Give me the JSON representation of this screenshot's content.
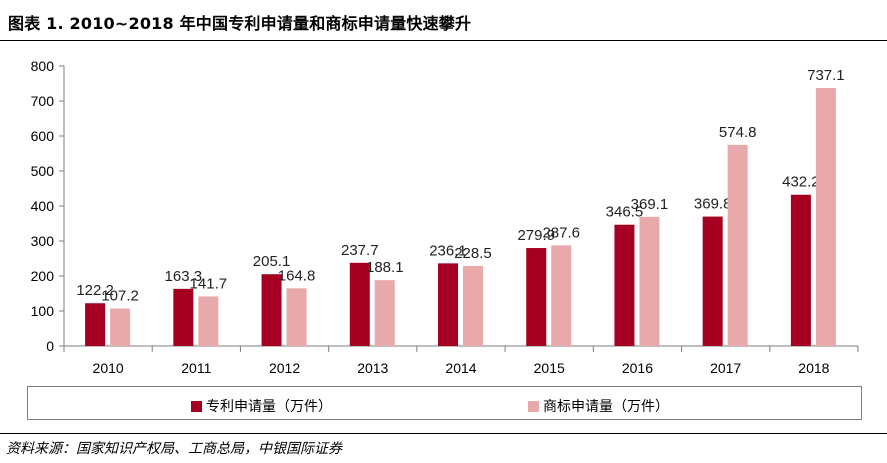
{
  "title": "图表 1. 2010~2018 年中国专利申请量和商标申请量快速攀升",
  "source": "资料来源：国家知识产权局、工商总局，中银国际证券",
  "colors": {
    "patent": "#a50021",
    "trademark": "#e8a9ab",
    "axis": "#7f7f7f"
  },
  "chart_data": {
    "type": "bar",
    "categories": [
      "2010",
      "2011",
      "2012",
      "2013",
      "2014",
      "2015",
      "2016",
      "2017",
      "2018"
    ],
    "series": [
      {
        "name": "专利申请量（万件）",
        "values": [
          122.2,
          163.3,
          205.1,
          237.7,
          236.1,
          279.9,
          346.5,
          369.8,
          432.2
        ]
      },
      {
        "name": "商标申请量（万件）",
        "values": [
          107.2,
          141.7,
          164.8,
          188.1,
          228.5,
          287.6,
          369.1,
          574.8,
          737.1
        ]
      }
    ],
    "data_labels": [
      [
        "122.2",
        "163.3",
        "205.1",
        "237.7",
        "236.1",
        "279.9",
        "346.5",
        "369.8",
        "432.2"
      ],
      [
        "107.2",
        "141.7",
        "164.8",
        "188.1",
        "228.5",
        "287.6",
        "369.1",
        "574.8",
        "737.1"
      ]
    ],
    "yticks": [
      "0",
      "100",
      "200",
      "300",
      "400",
      "500",
      "600",
      "700",
      "800"
    ],
    "ylim": [
      0,
      800
    ],
    "grid": false,
    "legend_position": "bottom"
  }
}
